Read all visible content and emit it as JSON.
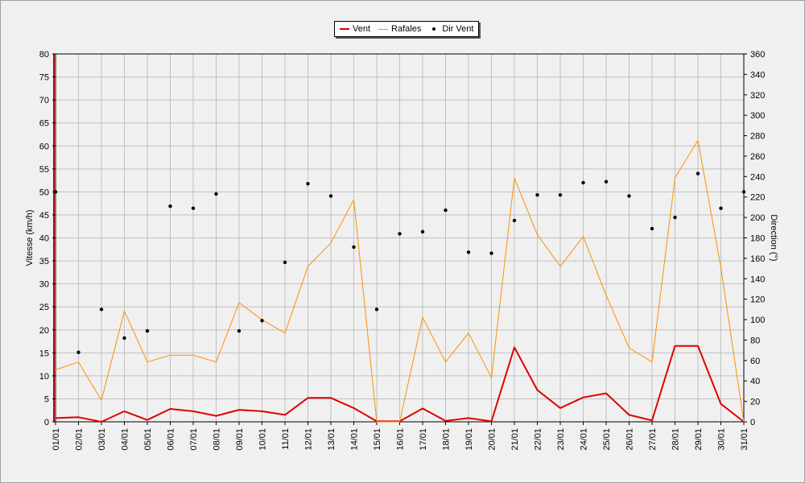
{
  "chart_data": {
    "type": "line",
    "categories": [
      "01/01",
      "02/01",
      "03/01",
      "04/01",
      "05/01",
      "06/01",
      "07/01",
      "08/01",
      "09/01",
      "10/01",
      "11/01",
      "12/01",
      "13/01",
      "14/01",
      "15/01",
      "16/01",
      "17/01",
      "18/01",
      "19/01",
      "20/01",
      "21/01",
      "22/01",
      "23/01",
      "24/01",
      "25/01",
      "26/01",
      "27/01",
      "28/01",
      "29/01",
      "30/01",
      "31/01"
    ],
    "series": [
      {
        "name": "Vent",
        "axis": "left",
        "style": "line",
        "color": "#e00000",
        "values": [
          0.8,
          1.0,
          0.0,
          2.3,
          0.4,
          2.8,
          2.3,
          1.3,
          2.6,
          2.3,
          1.5,
          5.2,
          5.2,
          3.0,
          0.1,
          0.1,
          2.9,
          0.2,
          0.8,
          0.1,
          16.2,
          6.9,
          3.0,
          5.3,
          6.2,
          1.5,
          0.3,
          16.5,
          16.5,
          3.9,
          0.0
        ]
      },
      {
        "name": "Rafales",
        "axis": "left",
        "style": "line",
        "color": "#ff9000",
        "values": [
          11.3,
          13.0,
          4.7,
          24.1,
          13.0,
          14.5,
          14.5,
          13.0,
          25.9,
          22.2,
          19.3,
          33.8,
          38.9,
          48.3,
          0.0,
          0.0,
          22.7,
          13.0,
          19.3,
          9.6,
          53.0,
          40.7,
          33.8,
          40.3,
          27.5,
          16.1,
          13.0,
          53.1,
          61.2,
          33.6,
          0.0
        ]
      },
      {
        "name": "Dir Vent",
        "axis": "right",
        "style": "points",
        "color": "#000000",
        "values": [
          225,
          68,
          110,
          82,
          89,
          211,
          209,
          223,
          89,
          99,
          156,
          233,
          221,
          171,
          110,
          184,
          186,
          207,
          166,
          165,
          197,
          222,
          222,
          234,
          235,
          221,
          189,
          200,
          243,
          209,
          225
        ]
      }
    ],
    "ylabel": "Vitesse (km/h)",
    "ylim": [
      0,
      80
    ],
    "yticks": [
      "0",
      "5",
      "10",
      "15",
      "20",
      "25",
      "30",
      "35",
      "40",
      "45",
      "50",
      "55",
      "60",
      "65",
      "70",
      "75",
      "80"
    ],
    "y2label": "Direction (°)",
    "y2lim": [
      0,
      360
    ],
    "y2ticks": [
      "0",
      "20",
      "40",
      "60",
      "80",
      "100",
      "120",
      "140",
      "160",
      "180",
      "200",
      "220",
      "240",
      "260",
      "280",
      "300",
      "320",
      "340",
      "360"
    ],
    "grid": true,
    "legend": "top-center"
  }
}
